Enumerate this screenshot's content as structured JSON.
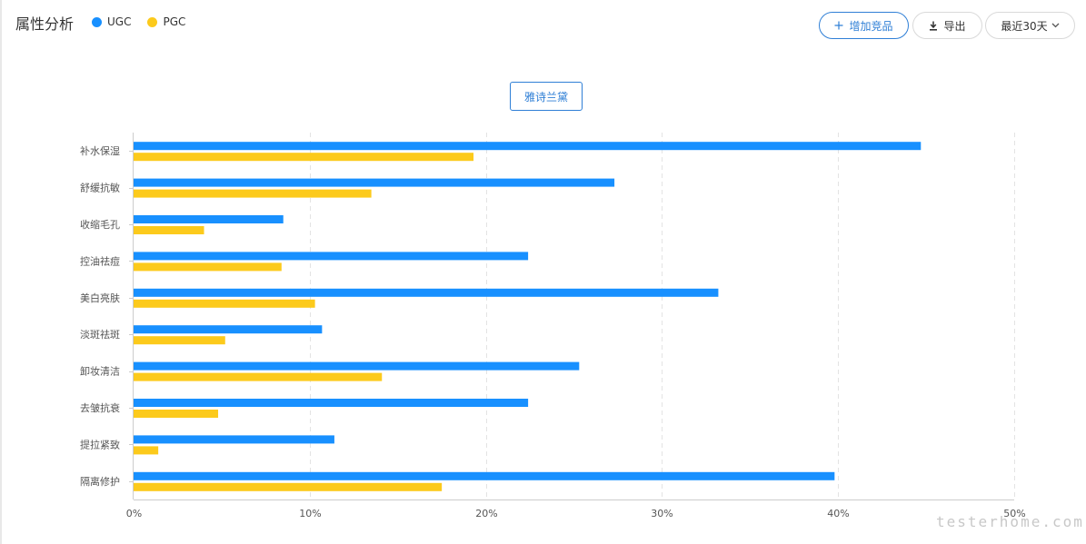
{
  "header": {
    "title": "属性分析",
    "add_label": "增加竞品",
    "export_label": "导出",
    "range_label": "最近30天"
  },
  "brand_tag": "雅诗兰黛",
  "watermark": "testerhome.com",
  "colors": {
    "ugc": "#1890ff",
    "pgc": "#fcca1c",
    "accent": "#2f7fd6"
  },
  "chart_data": {
    "type": "bar",
    "orientation": "horizontal",
    "categories": [
      "补水保湿",
      "舒缓抗敏",
      "收缩毛孔",
      "控油祛痘",
      "美白亮肤",
      "淡斑祛斑",
      "卸妆清洁",
      "去皱抗衰",
      "提拉紧致",
      "隔离修护"
    ],
    "series": [
      {
        "name": "UGC",
        "color": "#1890ff",
        "values": [
          44.7,
          27.3,
          8.5,
          22.4,
          33.2,
          10.7,
          25.3,
          22.4,
          11.4,
          39.8
        ]
      },
      {
        "name": "PGC",
        "color": "#fcca1c",
        "values": [
          19.3,
          13.5,
          4.0,
          8.4,
          10.3,
          5.2,
          14.1,
          4.8,
          1.4,
          17.5
        ]
      }
    ],
    "x_ticks": [
      "0%",
      "10%",
      "20%",
      "30%",
      "40%",
      "50%"
    ],
    "xlim": [
      0,
      50
    ],
    "grid": "vertical dashed",
    "legend": "top-left"
  }
}
